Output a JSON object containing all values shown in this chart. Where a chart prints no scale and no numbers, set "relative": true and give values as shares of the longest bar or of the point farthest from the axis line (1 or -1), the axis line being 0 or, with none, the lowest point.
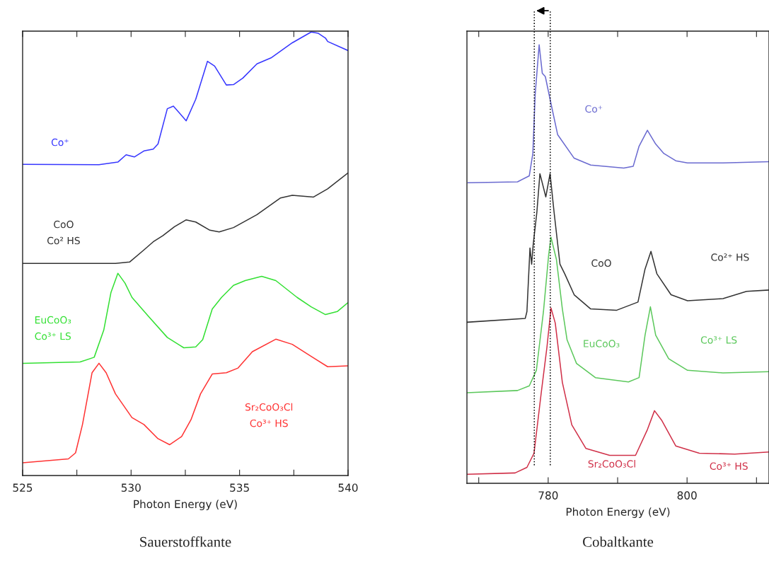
{
  "chart_data": [
    {
      "type": "line",
      "title": "Sauerstoffkante",
      "xlabel": "Photon Energy (eV)",
      "relative": true,
      "xlim": [
        525,
        540
      ],
      "xticks": [
        525,
        {
          "value": 527.5,
          "label": null
        },
        530,
        {
          "value": 532.5,
          "label": null
        },
        535,
        {
          "value": 537.5,
          "label": null
        },
        540
      ],
      "series": [
        {
          "name": "Co⁺",
          "color": "#3636ff",
          "x": [
            525,
            528.52,
            529.39,
            529.77,
            530.15,
            530.59,
            531.02,
            531.24,
            531.67,
            531.95,
            532.54,
            532.98,
            533.52,
            533.85,
            534.39,
            534.72,
            535.15,
            535.8,
            536.45,
            537.43,
            538.3,
            538.63,
            538.96,
            539.06,
            540
          ],
          "values": [
            0.693,
            0.692,
            0.698,
            0.715,
            0.71,
            0.724,
            0.728,
            0.74,
            0.822,
            0.828,
            0.794,
            0.844,
            0.932,
            0.921,
            0.877,
            0.878,
            0.893,
            0.926,
            0.94,
            0.975,
            1.0,
            0.997,
            0.986,
            0.978,
            0.957
          ]
        },
        {
          "name": "CoO\nCo² HS",
          "color": "#333333",
          "x": [
            525,
            529.28,
            529.93,
            530.59,
            531.02,
            531.46,
            532.0,
            532.54,
            532.98,
            533.63,
            534.06,
            534.72,
            535.8,
            536.89,
            537.43,
            538.41,
            539.06,
            540
          ],
          "values": [
            0.463,
            0.463,
            0.466,
            0.494,
            0.513,
            0.527,
            0.548,
            0.564,
            0.559,
            0.54,
            0.536,
            0.546,
            0.576,
            0.615,
            0.621,
            0.617,
            0.636,
            0.673
          ]
        },
        {
          "name": "EuCoO₃\nCo³⁺ LS",
          "color": "#33e033",
          "x": [
            525,
            527.65,
            528.3,
            528.74,
            529.07,
            529.39,
            529.72,
            530.04,
            530.8,
            531.67,
            532.43,
            532.98,
            533.3,
            533.74,
            534.17,
            534.72,
            535.26,
            536.02,
            536.67,
            537.65,
            538.3,
            538.96,
            539.5,
            540
          ],
          "values": [
            0.231,
            0.234,
            0.245,
            0.308,
            0.395,
            0.44,
            0.417,
            0.384,
            0.34,
            0.291,
            0.267,
            0.269,
            0.286,
            0.357,
            0.384,
            0.412,
            0.423,
            0.433,
            0.423,
            0.384,
            0.362,
            0.344,
            0.351,
            0.372
          ]
        },
        {
          "name": "Sr₂CoO₃Cl\nCo³⁺ HS",
          "color": "#ff3333",
          "x": [
            525,
            527.11,
            527.44,
            527.76,
            528.2,
            528.52,
            528.85,
            529.28,
            530.04,
            530.59,
            531.24,
            531.78,
            532.33,
            532.76,
            533.2,
            533.74,
            534.39,
            534.93,
            535.59,
            536.67,
            537.43,
            538.3,
            539.06,
            540
          ],
          "values": [
            0.0,
            0.009,
            0.023,
            0.089,
            0.209,
            0.231,
            0.209,
            0.16,
            0.105,
            0.089,
            0.056,
            0.042,
            0.061,
            0.1,
            0.16,
            0.206,
            0.209,
            0.22,
            0.258,
            0.287,
            0.275,
            0.247,
            0.223,
            0.225
          ]
        }
      ]
    },
    {
      "type": "line",
      "title": "Cobaltkante",
      "xlabel": "Photon Energy (eV)",
      "relative": true,
      "xlim": [
        768.3,
        811.8
      ],
      "xticks": [
        {
          "value": 770,
          "label": null
        },
        780,
        {
          "value": 790,
          "label": null
        },
        800,
        {
          "value": 810,
          "label": null
        }
      ],
      "series": [
        {
          "name": "Co⁺",
          "color": "#6a6ad0",
          "x": [
            768.44,
            775.58,
            777.28,
            777.79,
            778.13,
            778.7,
            779.15,
            779.59,
            780.34,
            781.36,
            783.74,
            786.12,
            790.89,
            792.24,
            793.09,
            794.29,
            795.48,
            796.66,
            798.37,
            800.07,
            805.17,
            811.8
          ],
          "values": [
            0.679,
            0.681,
            0.695,
            0.747,
            0.885,
            1.0,
            0.934,
            0.926,
            0.868,
            0.791,
            0.736,
            0.72,
            0.713,
            0.717,
            0.764,
            0.801,
            0.769,
            0.747,
            0.73,
            0.725,
            0.725,
            0.728
          ]
        },
        {
          "name": "CoO",
          "color": "#333333",
          "x": [
            768.3,
            776.7,
            776.94,
            777.38,
            777.62,
            777.83,
            778.37,
            778.81,
            779.66,
            780.27,
            780.85,
            781.7,
            782.38,
            783.74,
            786.12,
            789.87,
            792.93,
            793.95,
            794.8,
            795.65,
            797.69,
            800.07,
            805.17,
            808.57,
            811.8
          ],
          "values": [
            0.354,
            0.363,
            0.379,
            0.527,
            0.489,
            0.533,
            0.61,
            0.7,
            0.646,
            0.7,
            0.61,
            0.489,
            0.467,
            0.418,
            0.385,
            0.382,
            0.401,
            0.478,
            0.519,
            0.467,
            0.418,
            0.404,
            0.409,
            0.426,
            0.429
          ]
        },
        {
          "name": "EuCoO₃",
          "color": "#5cc85c",
          "x": [
            768.3,
            775.58,
            777.28,
            778.3,
            779.32,
            780.07,
            780.4,
            781.19,
            782.04,
            782.72,
            784.08,
            786.8,
            791.56,
            793.09,
            793.95,
            794.72,
            795.48,
            797.35,
            800.07,
            805.17,
            811.8
          ],
          "values": [
            0.19,
            0.195,
            0.206,
            0.242,
            0.379,
            0.511,
            0.552,
            0.5,
            0.385,
            0.313,
            0.258,
            0.225,
            0.215,
            0.225,
            0.324,
            0.39,
            0.324,
            0.269,
            0.242,
            0.236,
            0.239
          ]
        },
        {
          "name": "Sr₂CoO₃Cl",
          "color": "#d03048",
          "x": [
            768.3,
            775.23,
            776.94,
            777.96,
            778.98,
            779.83,
            780.41,
            781.02,
            782.04,
            783.4,
            785.44,
            788.85,
            792.58,
            794.29,
            795.31,
            796.33,
            798.37,
            801.77,
            806.87,
            811.8
          ],
          "values": [
            0.0,
            0.003,
            0.016,
            0.049,
            0.187,
            0.297,
            0.387,
            0.352,
            0.214,
            0.115,
            0.06,
            0.044,
            0.044,
            0.104,
            0.148,
            0.126,
            0.066,
            0.049,
            0.047,
            0.052
          ]
        }
      ],
      "annotations": [
        "Co²⁺ HS",
        "Co³⁺ LS",
        "Co³⁺ HS"
      ],
      "ref_lines": [
        {
          "axis": "x",
          "value": 778,
          "line_style": "dotted",
          "color": "#000000"
        },
        {
          "axis": "x",
          "value": 780.3,
          "line_style": "dotted",
          "color": "#000000"
        }
      ]
    }
  ]
}
